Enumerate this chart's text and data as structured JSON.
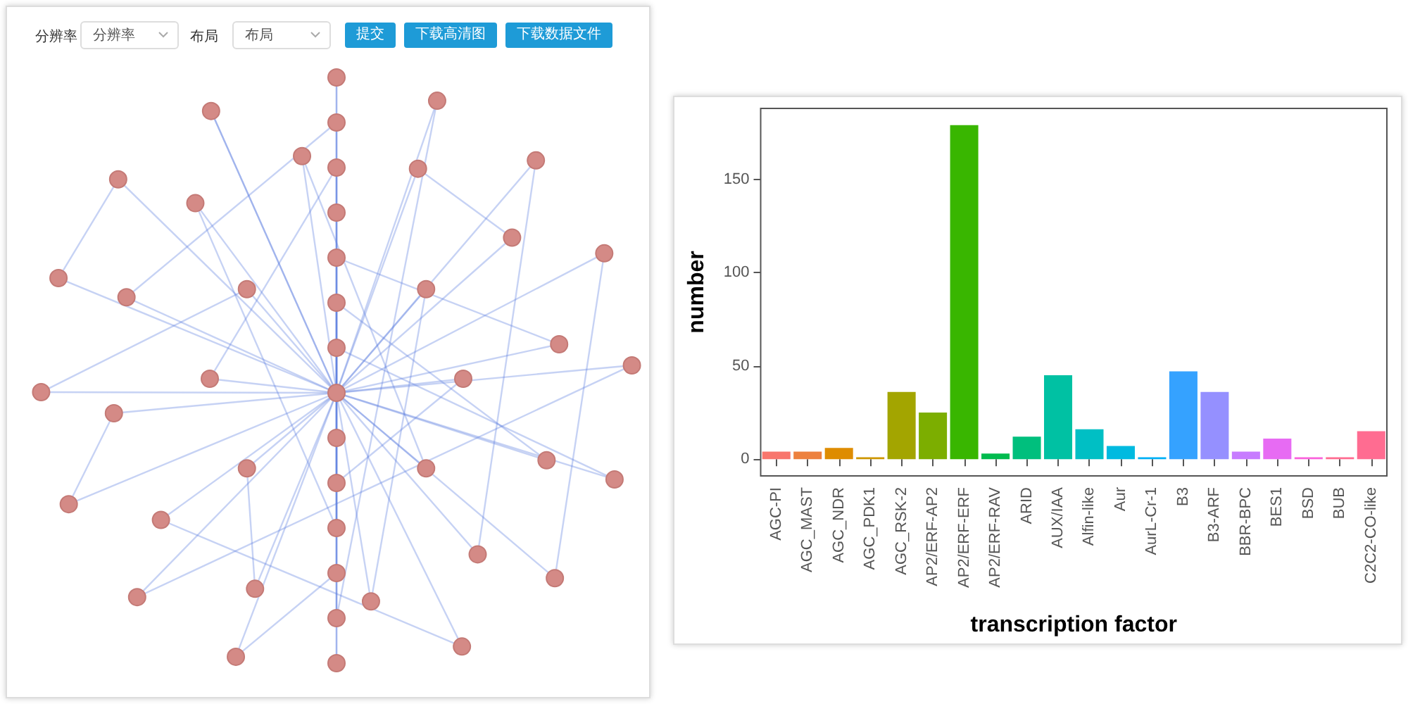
{
  "chart_data": [
    {
      "type": "other",
      "annotations": [
        "分辨率",
        "分辨率",
        "布局",
        "布局",
        "提交",
        "下载高清图",
        "下载数据文件"
      ]
    },
    {
      "type": "bar",
      "xlabel": "transcription factor",
      "ylabel": "number",
      "categories": [
        "AGC-PI",
        "AGC_MAST",
        "AGC_NDR",
        "AGC_PDK1",
        "AGC_RSK-2",
        "AP2/ERF-AP2",
        "AP2/ERF-ERF",
        "AP2/ERF-RAV",
        "ARID",
        "AUX/IAA",
        "Alfin-like",
        "Aur",
        "AurL-Cr-1",
        "B3",
        "B3-ARF",
        "BBR-BPC",
        "BES1",
        "BSD",
        "BUB",
        "C2C2-CO-like"
      ],
      "values": [
        4,
        4,
        6,
        1,
        36,
        25,
        179,
        3,
        12,
        45,
        16,
        7,
        1,
        47,
        36,
        4,
        11,
        1,
        1,
        15
      ],
      "colors": [
        "#f8766d",
        "#ed813e",
        "#de8c00",
        "#cd9600",
        "#a3a500",
        "#7cae00",
        "#39b600",
        "#00bb4e",
        "#00bf7d",
        "#00c1a3",
        "#00bfc4",
        "#00bae0",
        "#00b0f6",
        "#35a2ff",
        "#9590ff",
        "#c77cff",
        "#e76bf3",
        "#fa62db",
        "#ff6c91",
        "#ff6c91"
      ],
      "ylim": [
        -9,
        188
      ],
      "yticks": [
        0,
        50,
        100,
        150
      ],
      "grid": false
    }
  ]
}
